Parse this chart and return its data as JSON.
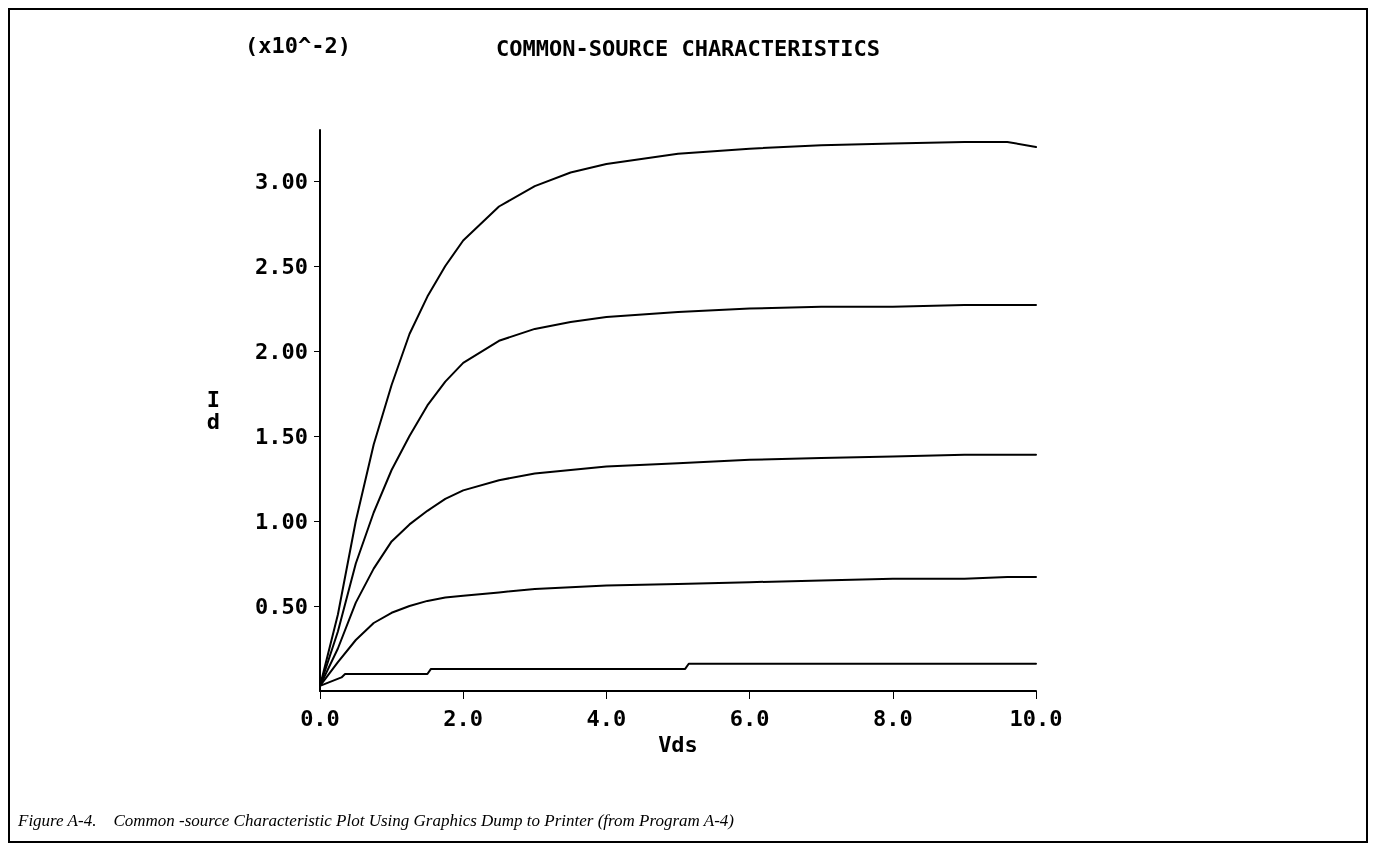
{
  "chart_data": {
    "type": "line",
    "title": "COMMON-SOURCE CHARACTERISTICS",
    "xlabel": "Vds",
    "ylabel": "Id",
    "annotations": [
      "(x10^-2)",
      "Figure A-4.    Common -source Characteristic Plot Using Graphics Dump to Printer (from Program A-4)"
    ],
    "x": [
      0,
      0.25,
      0.5,
      0.75,
      1,
      1.25,
      1.5,
      1.75,
      2,
      2.5,
      3,
      3.5,
      4,
      5,
      6,
      7,
      8,
      9,
      9.6,
      10
    ],
    "series": [
      {
        "color": "#000000",
        "values": [
          0.03,
          0.45,
          1.0,
          1.45,
          1.8,
          2.1,
          2.32,
          2.5,
          2.65,
          2.85,
          2.97,
          3.05,
          3.1,
          3.16,
          3.19,
          3.21,
          3.22,
          3.23,
          3.23,
          3.2
        ]
      },
      {
        "color": "#000000",
        "values": [
          0.03,
          0.35,
          0.75,
          1.05,
          1.3,
          1.5,
          1.68,
          1.82,
          1.93,
          2.06,
          2.13,
          2.17,
          2.2,
          2.23,
          2.25,
          2.26,
          2.26,
          2.27,
          2.27,
          2.27
        ]
      },
      {
        "color": "#000000",
        "values": [
          0.03,
          0.25,
          0.52,
          0.72,
          0.88,
          0.98,
          1.06,
          1.13,
          1.18,
          1.24,
          1.28,
          1.3,
          1.32,
          1.34,
          1.36,
          1.37,
          1.38,
          1.39,
          1.39,
          1.39
        ]
      },
      {
        "color": "#000000",
        "values": [
          0.03,
          0.17,
          0.3,
          0.4,
          0.46,
          0.5,
          0.53,
          0.55,
          0.56,
          0.58,
          0.6,
          0.61,
          0.62,
          0.63,
          0.64,
          0.65,
          0.66,
          0.66,
          0.67,
          0.67
        ]
      },
      {
        "color": "#000000",
        "x": [
          0,
          0.3,
          0.35,
          1.5,
          1.55,
          5.1,
          5.15,
          10
        ],
        "values": [
          0.03,
          0.08,
          0.1,
          0.1,
          0.13,
          0.13,
          0.16,
          0.16
        ]
      }
    ],
    "xlim": [
      0,
      10
    ],
    "ylim": [
      0,
      3.3
    ],
    "xticks": [
      {
        "value": 0,
        "label": "0.0"
      },
      {
        "value": 2,
        "label": "2.0"
      },
      {
        "value": 4,
        "label": "4.0"
      },
      {
        "value": 6,
        "label": "6.0"
      },
      {
        "value": 8,
        "label": "8.0"
      },
      {
        "value": 10,
        "label": "10.0"
      }
    ],
    "yticks": [
      {
        "value": 0.5,
        "label": "0.50"
      },
      {
        "value": 1,
        "label": "1.00"
      },
      {
        "value": 1.5,
        "label": "1.50"
      },
      {
        "value": 2,
        "label": "2.00"
      },
      {
        "value": 2.5,
        "label": "2.50"
      },
      {
        "value": 3,
        "label": "3.00"
      }
    ],
    "grid": false,
    "marker": "none",
    "line_style": "solid"
  }
}
